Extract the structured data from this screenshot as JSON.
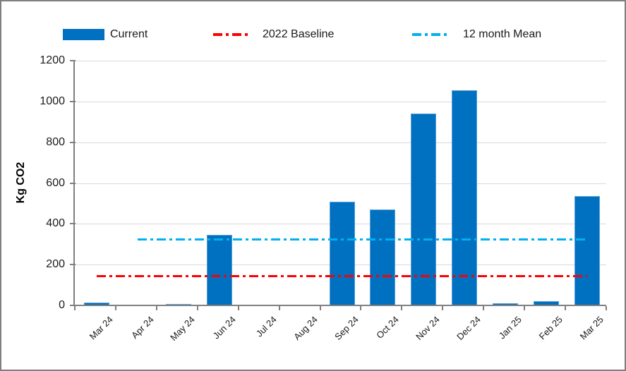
{
  "legend": {
    "items": [
      {
        "label": "Current",
        "marker": "bar-swatch",
        "color": "#0070C0"
      },
      {
        "label": "2022 Baseline",
        "marker": "dash-dot-line",
        "color": "#FF0000"
      },
      {
        "label": "12 month Mean",
        "marker": "dash-dot-line",
        "color": "#00B0F0"
      }
    ]
  },
  "chart_data": {
    "type": "bar",
    "title": "",
    "xlabel": "",
    "ylabel": "Kg CO2",
    "ylim": [
      0,
      1200
    ],
    "yticks": [
      0,
      200,
      400,
      600,
      800,
      1000,
      1200
    ],
    "grid": true,
    "legend_position": "top",
    "categories": [
      "Mar 24",
      "Apr 24",
      "May 24",
      "Jun 24",
      "Jul 24",
      "Aug 24",
      "Sep 24",
      "Oct 24",
      "Nov 24",
      "Dec 24",
      "Jan 25",
      "Feb 25",
      "Mar 25"
    ],
    "series": [
      {
        "name": "Current",
        "type": "bar",
        "color": "#0070C0",
        "values": [
          14,
          0,
          8,
          345,
          0,
          0,
          510,
          470,
          940,
          1055,
          12,
          22,
          535
        ]
      },
      {
        "name": "2022 Baseline",
        "type": "constant-line",
        "style": "dash-dot",
        "color": "#FF0000",
        "value": 145,
        "from_category": "Mar 24",
        "to_category": "Mar 25"
      },
      {
        "name": "12 month Mean",
        "type": "constant-line",
        "style": "dash-dot",
        "color": "#00B0F0",
        "value": 325,
        "from_category": "Apr 24",
        "to_category": "Mar 25"
      }
    ]
  },
  "colors": {
    "bar": "#0070C0",
    "bar_edge": "#579FD7",
    "baseline_line": "#FF0000",
    "mean_line": "#00B0F0",
    "gridline": "#D9D9D9",
    "axis": "#7F7F7F",
    "text": "#1A1A1A",
    "background": "#FFFFFF",
    "frame_border": "#7F7F7F"
  }
}
